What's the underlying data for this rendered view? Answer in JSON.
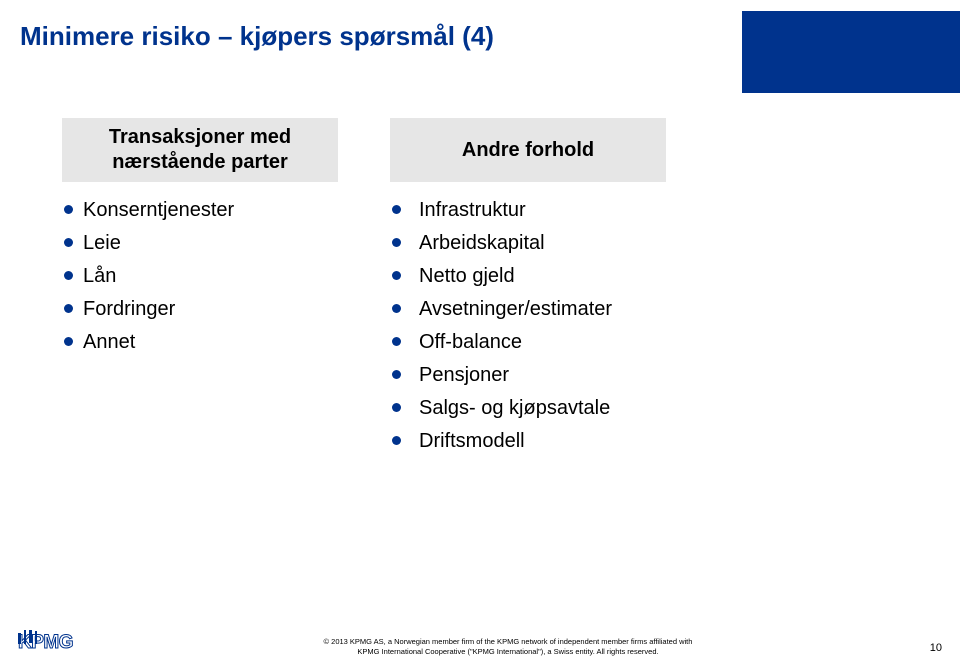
{
  "title": "Minimere risiko – kjøpers spørsmål (4)",
  "columns": {
    "left": {
      "header": "Transaksjoner med nærstående parter",
      "items": [
        {
          "label": "Konserntjenester"
        },
        {
          "label": "Leie"
        },
        {
          "label": "Lån"
        },
        {
          "label": "Fordringer"
        },
        {
          "label": "Annet"
        }
      ]
    },
    "right": {
      "header": "Andre forhold",
      "items": [
        {
          "label": "Infrastruktur"
        },
        {
          "label": "Arbeidskapital"
        },
        {
          "label": "Netto gjeld"
        },
        {
          "label": "Avsetninger/estimater"
        },
        {
          "label": "Off-balance"
        },
        {
          "label": "Pensjoner"
        },
        {
          "label": "Salgs- og kjøpsavtale"
        },
        {
          "label": "Driftsmodell"
        }
      ]
    }
  },
  "footer": {
    "logo_text": "KPMG",
    "copyright_line1": "© 2013 KPMG AS, a Norwegian member firm of the KPMG network of independent member firms affiliated with",
    "copyright_line2": "KPMG International Cooperative (\"KPMG International\"), a Swiss entity. All rights reserved.",
    "page_number": "10"
  },
  "colors": {
    "brand_blue": "#00338d",
    "header_bg": "#e6e6e6",
    "text": "#000000",
    "page_bg": "#ffffff"
  }
}
